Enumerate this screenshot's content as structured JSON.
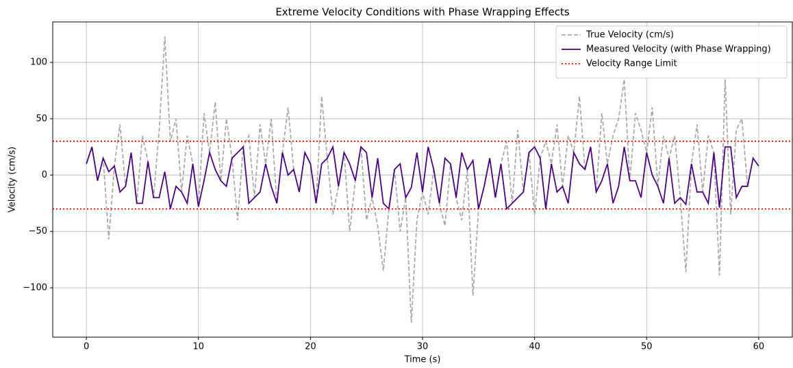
{
  "chart_data": {
    "type": "line",
    "title": "Extreme Velocity Conditions with Phase Wrapping Effects",
    "x_label": "Time (s)",
    "y_label": "Velocity (cm/s)",
    "x": [
      0,
      0.5,
      1,
      1.5,
      2,
      2.5,
      3,
      3.5,
      4,
      4.5,
      5,
      5.5,
      6,
      6.5,
      7,
      7.5,
      8,
      8.5,
      9,
      9.5,
      10,
      10.5,
      11,
      11.5,
      12,
      12.5,
      13,
      13.5,
      14,
      14.5,
      15,
      15.5,
      16,
      16.5,
      17,
      17.5,
      18,
      18.5,
      19,
      19.5,
      20,
      20.5,
      21,
      21.5,
      22,
      22.5,
      23,
      23.5,
      24,
      24.5,
      25,
      25.5,
      26,
      26.5,
      27,
      27.5,
      28,
      28.5,
      29,
      29.5,
      30,
      30.5,
      31,
      31.5,
      32,
      32.5,
      33,
      33.5,
      34,
      34.5,
      35,
      35.5,
      36,
      36.5,
      37,
      37.5,
      38,
      38.5,
      39,
      39.5,
      40,
      40.5,
      41,
      41.5,
      42,
      42.5,
      43,
      43.5,
      44,
      44.5,
      45,
      45.5,
      46,
      46.5,
      47,
      47.5,
      48,
      48.5,
      49,
      49.5,
      50,
      50.5,
      51,
      51.5,
      52,
      52.5,
      53,
      53.5,
      54,
      54.5,
      55,
      55.5,
      56,
      56.5,
      57,
      57.5,
      58,
      58.5,
      59,
      59.5,
      60
    ],
    "series": [
      {
        "name": "True Velocity (cm/s)",
        "color": "#aaaaaa",
        "dash": "dashed",
        "values": [
          10,
          25,
          -5,
          15,
          -57,
          8,
          45,
          -10,
          20,
          -25,
          35,
          12,
          -20,
          40,
          123,
          30,
          50,
          -15,
          35,
          10,
          -28,
          55,
          20,
          65,
          -5,
          50,
          15,
          -40,
          25,
          35,
          -20,
          45,
          10,
          50,
          -25,
          20,
          60,
          5,
          -15,
          20,
          10,
          -25,
          70,
          15,
          -35,
          -10,
          20,
          -50,
          -5,
          25,
          -40,
          -20,
          -45,
          -85,
          -30,
          5,
          -50,
          -20,
          -131,
          -40,
          -15,
          -35,
          5,
          -25,
          -45,
          10,
          -20,
          -40,
          5,
          -107,
          -30,
          -10,
          15,
          -20,
          10,
          30,
          -25,
          40,
          -15,
          20,
          -35,
          15,
          30,
          10,
          45,
          -10,
          35,
          20,
          70,
          5,
          25,
          -15,
          55,
          10,
          35,
          50,
          85,
          -5,
          55,
          40,
          20,
          60,
          -10,
          35,
          15,
          35,
          -20,
          -86,
          10,
          45,
          -15,
          35,
          20,
          -89,
          85,
          -35,
          40,
          50,
          -10,
          15,
          8
        ]
      },
      {
        "name": "Measured Velocity (with Phase Wrapping)",
        "color": "#4b0082",
        "dash": "solid",
        "values": [
          10,
          25,
          -5,
          15,
          3,
          8,
          -15,
          -10,
          20,
          -25,
          -25,
          12,
          -20,
          -20,
          3,
          -30,
          -10,
          -15,
          -25,
          10,
          -28,
          -5,
          20,
          5,
          -5,
          -10,
          15,
          20,
          25,
          -25,
          -20,
          -15,
          10,
          -10,
          -25,
          20,
          0,
          5,
          -15,
          20,
          10,
          -25,
          10,
          15,
          25,
          -10,
          20,
          10,
          -5,
          25,
          20,
          -20,
          15,
          -25,
          -30,
          5,
          10,
          -20,
          -11,
          20,
          -15,
          25,
          5,
          -25,
          15,
          10,
          -20,
          20,
          5,
          13,
          -30,
          -10,
          15,
          -20,
          10,
          -30,
          -25,
          -20,
          -15,
          20,
          25,
          15,
          -30,
          10,
          -15,
          -10,
          -25,
          20,
          10,
          5,
          25,
          -15,
          -5,
          10,
          -25,
          -10,
          25,
          -5,
          -5,
          -20,
          20,
          0,
          -10,
          -25,
          15,
          -25,
          -20,
          -26,
          10,
          -15,
          -15,
          -25,
          20,
          -29,
          25,
          25,
          -20,
          -10,
          -10,
          15,
          8
        ]
      }
    ],
    "range_limit": {
      "name": "Velocity Range Limit",
      "color": "#ff0000",
      "values": [
        30,
        -30
      ]
    },
    "xlim": [
      -3,
      63
    ],
    "ylim": [
      -143.8,
      135.9
    ],
    "xticks": [
      0,
      10,
      20,
      30,
      40,
      50,
      60
    ],
    "yticks": [
      {
        "value": -100,
        "label": "−100"
      },
      {
        "value": -50,
        "label": "−50"
      },
      0,
      50,
      100
    ],
    "grid": true,
    "legend": "upper right"
  }
}
